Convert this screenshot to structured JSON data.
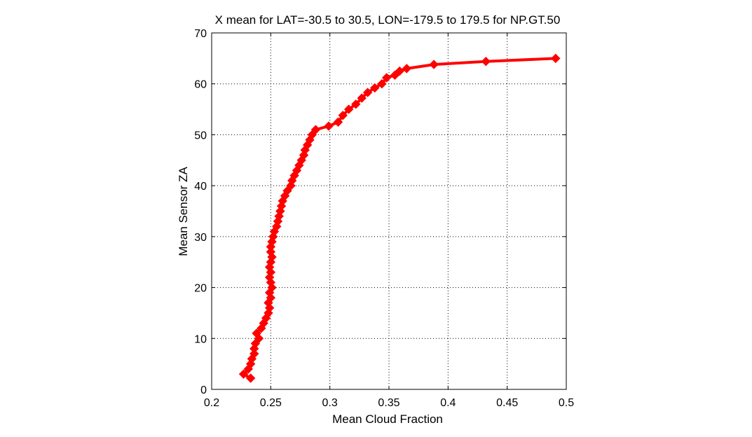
{
  "chart_data": {
    "type": "line",
    "title": "X mean for LAT=-30.5 to 30.5, LON=-179.5 to 179.5 for NP.GT.50",
    "xlabel": "Mean Cloud Fraction",
    "ylabel": "Mean Sensor ZA",
    "xlim": [
      0.2,
      0.5
    ],
    "ylim": [
      0,
      70
    ],
    "xticks": [
      "0.2",
      "0.25",
      "0.3",
      "0.35",
      "0.4",
      "0.45",
      "0.5"
    ],
    "yticks": [
      "0",
      "10",
      "20",
      "30",
      "40",
      "50",
      "60",
      "70"
    ],
    "grid": true,
    "series_color": "#ff0000",
    "series": [
      {
        "marker": "diamond",
        "points": [
          [
            0.233,
            2.2
          ],
          [
            0.227,
            3
          ],
          [
            0.231,
            4
          ],
          [
            0.233,
            5
          ],
          [
            0.234,
            6
          ],
          [
            0.236,
            7
          ],
          [
            0.236,
            8
          ],
          [
            0.237,
            9
          ],
          [
            0.24,
            10
          ],
          [
            0.238,
            11
          ],
          [
            0.242,
            12
          ],
          [
            0.244,
            13
          ],
          [
            0.246,
            14
          ],
          [
            0.248,
            15
          ],
          [
            0.249,
            16
          ],
          [
            0.248,
            17
          ],
          [
            0.25,
            18
          ],
          [
            0.249,
            19
          ],
          [
            0.251,
            20
          ],
          [
            0.25,
            21
          ],
          [
            0.249,
            22
          ],
          [
            0.25,
            23
          ],
          [
            0.249,
            24
          ],
          [
            0.25,
            25
          ],
          [
            0.251,
            26
          ],
          [
            0.25,
            27
          ],
          [
            0.25,
            28
          ],
          [
            0.251,
            29
          ],
          [
            0.252,
            30
          ],
          [
            0.253,
            31
          ],
          [
            0.255,
            32
          ],
          [
            0.256,
            33
          ],
          [
            0.257,
            34
          ],
          [
            0.258,
            35
          ],
          [
            0.259,
            36
          ],
          [
            0.26,
            37
          ],
          [
            0.262,
            38
          ],
          [
            0.264,
            39
          ],
          [
            0.267,
            40
          ],
          [
            0.268,
            41
          ],
          [
            0.27,
            42
          ],
          [
            0.272,
            43
          ],
          [
            0.274,
            44
          ],
          [
            0.276,
            45
          ],
          [
            0.278,
            46
          ],
          [
            0.279,
            47
          ],
          [
            0.281,
            48
          ],
          [
            0.283,
            49
          ],
          [
            0.285,
            50
          ],
          [
            0.288,
            51
          ],
          [
            0.299,
            51.7
          ],
          [
            0.307,
            52.5
          ],
          [
            0.311,
            53.8
          ],
          [
            0.316,
            55
          ],
          [
            0.322,
            56
          ],
          [
            0.327,
            57.2
          ],
          [
            0.332,
            58.3
          ],
          [
            0.338,
            59.2
          ],
          [
            0.344,
            60
          ],
          [
            0.348,
            61.2
          ],
          [
            0.355,
            61.7
          ],
          [
            0.359,
            62.5
          ],
          [
            0.365,
            63
          ],
          [
            0.388,
            63.8
          ],
          [
            0.432,
            64.4
          ],
          [
            0.491,
            65
          ]
        ]
      }
    ]
  }
}
